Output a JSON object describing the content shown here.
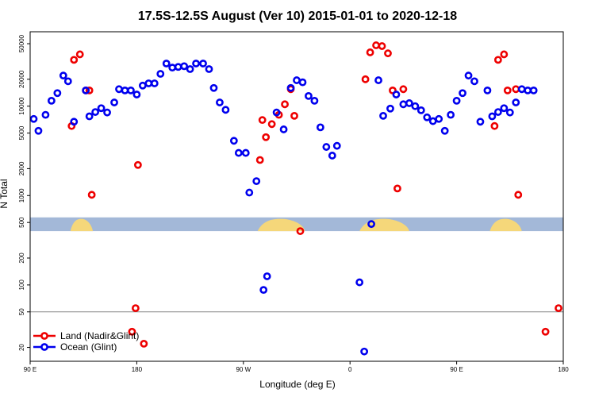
{
  "chart_data": {
    "type": "scatter",
    "title": "17.5S-12.5S August (Ver 10)   2015-01-01 to 2020-12-18",
    "xlabel": "Longitude (deg E)",
    "ylabel": "N Total",
    "y_scale": "log",
    "x_range_deg_east": [
      90,
      450
    ],
    "ylim": [
      14,
      68000
    ],
    "x_ticks": [
      {
        "value": 90,
        "label": "90 E"
      },
      {
        "value": 180,
        "label": "180"
      },
      {
        "value": 270,
        "label": "90 W"
      },
      {
        "value": 360,
        "label": "0"
      },
      {
        "value": 450,
        "label": "90 E"
      },
      {
        "value": 540,
        "label": "180"
      }
    ],
    "x_range": [
      90,
      540
    ],
    "y_ticks": [
      {
        "value": 20,
        "label": "20"
      },
      {
        "value": 50,
        "label": "50"
      },
      {
        "value": 100,
        "label": "100"
      },
      {
        "value": 200,
        "label": "200"
      },
      {
        "value": 500,
        "label": "500"
      },
      {
        "value": 1000,
        "label": "1000"
      },
      {
        "value": 2000,
        "label": "2000"
      },
      {
        "value": 5000,
        "label": "5000"
      },
      {
        "value": 10000,
        "label": "10000"
      },
      {
        "value": 20000,
        "label": "20000"
      },
      {
        "value": 50000,
        "label": "50000"
      }
    ],
    "reference_line": 50,
    "map_strip": {
      "ocean_color": "#a3b8d8",
      "land_color": "#f5d77a",
      "y_range": [
        400,
        570
      ]
    },
    "legend": {
      "position": "bottom-left"
    },
    "series": [
      {
        "name": "Land (Nadir&Glint)",
        "color": "#ee0000",
        "points": [
          [
            125,
            6000
          ],
          [
            127,
            33000
          ],
          [
            132,
            38000
          ],
          [
            137,
            15000
          ],
          [
            140,
            15000
          ],
          [
            142,
            1020
          ],
          [
            179,
            55
          ],
          [
            181,
            2200
          ],
          [
            186,
            22
          ],
          [
            176,
            30
          ],
          [
            284,
            2500
          ],
          [
            286,
            7000
          ],
          [
            289,
            4500
          ],
          [
            294,
            6300
          ],
          [
            300,
            8000
          ],
          [
            305,
            10500
          ],
          [
            310,
            15500
          ],
          [
            313,
            7800
          ],
          [
            318,
            400
          ],
          [
            373,
            20000
          ],
          [
            377,
            40000
          ],
          [
            382,
            48000
          ],
          [
            387,
            47000
          ],
          [
            392,
            39000
          ],
          [
            396,
            15000
          ],
          [
            400,
            1200
          ],
          [
            405,
            15500
          ],
          [
            482,
            6000
          ],
          [
            485,
            33000
          ],
          [
            490,
            38000
          ],
          [
            493,
            15000
          ],
          [
            500,
            15500
          ],
          [
            502,
            1020
          ],
          [
            525,
            30
          ],
          [
            536,
            55
          ]
        ]
      },
      {
        "name": "Ocean (Glint)",
        "color": "#0000ee",
        "points": [
          [
            93,
            7200
          ],
          [
            97,
            5300
          ],
          [
            103,
            8000
          ],
          [
            108,
            11500
          ],
          [
            113,
            14000
          ],
          [
            118,
            22000
          ],
          [
            122,
            19000
          ],
          [
            127,
            6700
          ],
          [
            137,
            15000
          ],
          [
            140,
            7700
          ],
          [
            145,
            8600
          ],
          [
            150,
            9500
          ],
          [
            155,
            8500
          ],
          [
            161,
            11000
          ],
          [
            165,
            15500
          ],
          [
            170,
            15000
          ],
          [
            175,
            15000
          ],
          [
            180,
            13500
          ],
          [
            185,
            17000
          ],
          [
            190,
            18000
          ],
          [
            195,
            18000
          ],
          [
            200,
            23000
          ],
          [
            205,
            30000
          ],
          [
            210,
            27000
          ],
          [
            215,
            27500
          ],
          [
            220,
            28000
          ],
          [
            225,
            26000
          ],
          [
            230,
            30000
          ],
          [
            236,
            30000
          ],
          [
            241,
            26000
          ],
          [
            245,
            16000
          ],
          [
            250,
            11000
          ],
          [
            255,
            9100
          ],
          [
            262,
            4100
          ],
          [
            266,
            3000
          ],
          [
            272,
            3000
          ],
          [
            275,
            1080
          ],
          [
            281,
            1450
          ],
          [
            287,
            88
          ],
          [
            290,
            125
          ],
          [
            298,
            8500
          ],
          [
            304,
            5500
          ],
          [
            310,
            16000
          ],
          [
            315,
            19500
          ],
          [
            320,
            18500
          ],
          [
            325,
            13000
          ],
          [
            330,
            11500
          ],
          [
            335,
            5800
          ],
          [
            340,
            3500
          ],
          [
            345,
            2800
          ],
          [
            349,
            3600
          ],
          [
            368,
            107
          ],
          [
            372,
            18
          ],
          [
            378,
            480
          ],
          [
            384,
            19500
          ],
          [
            388,
            7800
          ],
          [
            394,
            9400
          ],
          [
            399,
            13500
          ],
          [
            405,
            10500
          ],
          [
            410,
            10800
          ],
          [
            415,
            10000
          ],
          [
            420,
            9000
          ],
          [
            425,
            7500
          ],
          [
            430,
            6800
          ],
          [
            435,
            7200
          ],
          [
            440,
            5300
          ],
          [
            445,
            8000
          ],
          [
            450,
            11500
          ],
          [
            455,
            14000
          ],
          [
            460,
            22000
          ],
          [
            465,
            19000
          ],
          [
            470,
            6700
          ],
          [
            476,
            15000
          ],
          [
            480,
            7700
          ],
          [
            485,
            8600
          ],
          [
            490,
            9500
          ],
          [
            495,
            8500
          ],
          [
            500,
            11000
          ],
          [
            505,
            15500
          ],
          [
            510,
            15000
          ],
          [
            515,
            15000
          ]
        ]
      }
    ]
  }
}
